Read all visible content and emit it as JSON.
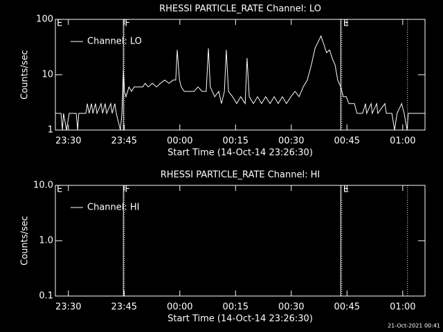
{
  "chart_data": [
    {
      "type": "line",
      "title": "RHESSI PARTICLE_RATE Channel: LO",
      "xlabel": "Start Time (14-Oct-14 23:26:30)",
      "ylabel": "Counts/sec",
      "x": [
        0,
        1.5,
        1.9,
        2.2,
        3.0,
        3.7,
        5.6,
        6.0,
        6.3,
        8.2,
        8.6,
        9.1,
        9.7,
        10.1,
        10.8,
        11.2,
        12.3,
        12.7,
        13.4,
        13.8,
        14.9,
        15.3,
        16.0,
        16.4,
        17.5,
        17.9,
        18.3,
        18.6,
        19.0,
        19.8,
        20.5,
        21.2,
        22.4,
        23.5,
        24.2,
        25.0,
        26.1,
        27.2,
        28.3,
        29.4,
        30.6,
        31.7,
        32.4,
        32.8,
        33.4,
        33.9,
        34.7,
        35.8,
        37.3,
        38.4,
        39.5,
        40.6,
        41.2,
        41.7,
        42.9,
        44.0,
        44.7,
        45.5,
        46.0,
        46.6,
        47.7,
        48.8,
        49.9,
        51.1,
        51.6,
        52.2,
        53.3,
        54.4,
        55.5,
        56.6,
        57.8,
        58.9,
        60.0,
        61.1,
        62.2,
        63.4,
        64.5,
        65.6,
        66.7,
        67.8,
        68.9,
        69.9,
        70.8,
        71.5,
        72.3,
        73.0,
        73.8,
        74.5,
        75.3,
        76.0,
        76.8,
        77.5,
        78.3,
        79.0,
        80.5,
        81.2,
        82.7,
        83.5,
        83.8,
        85.0,
        85.3,
        86.5,
        86.8,
        88.7,
        89.1,
        90.6,
        91.3,
        92.0,
        93.2,
        93.9,
        94.7,
        95.0,
        99.5
      ],
      "series": [
        {
          "name": "Channel: LO",
          "color": "#ffffff",
          "values": [
            2,
            2,
            1,
            2,
            1,
            2,
            2,
            1,
            2,
            2,
            3,
            2,
            3,
            2,
            3,
            2,
            3,
            2,
            3,
            2,
            3,
            2,
            3,
            2,
            1,
            2,
            12,
            5,
            4,
            6,
            5,
            6,
            6,
            6,
            7,
            6,
            7,
            6,
            7,
            8,
            7,
            8,
            8,
            28,
            8,
            6,
            5,
            5,
            5,
            6,
            5,
            5,
            30,
            6,
            4,
            5,
            3,
            5,
            28,
            5,
            4,
            3,
            4,
            3,
            20,
            4,
            3,
            4,
            3,
            4,
            3,
            4,
            3,
            4,
            3,
            4,
            5,
            4,
            6,
            8,
            15,
            30,
            40,
            50,
            35,
            25,
            28,
            20,
            15,
            8,
            6,
            4,
            4,
            3,
            3,
            2,
            2,
            3,
            2,
            3,
            2,
            3,
            2,
            3,
            2,
            2,
            1,
            2,
            3,
            2,
            1,
            2,
            2
          ]
        }
      ],
      "xlim": [
        0,
        99.5
      ],
      "xticks": [
        {
          "value": 3.5,
          "label": "23:30"
        },
        {
          "value": 18.5,
          "label": "23:45"
        },
        {
          "value": 33.5,
          "label": "00:00"
        },
        {
          "value": 48.5,
          "label": "00:15"
        },
        {
          "value": 63.5,
          "label": "00:30"
        },
        {
          "value": 78.5,
          "label": "00:45"
        },
        {
          "value": 93.5,
          "label": "01:00"
        }
      ],
      "ylim": [
        1,
        100
      ],
      "yticks": [
        1,
        10,
        100
      ],
      "log_y": true,
      "annotations": [
        {
          "x": 0,
          "text": "E"
        },
        {
          "x": 18.3,
          "text": "F"
        },
        {
          "x": 77.1,
          "text": "E"
        }
      ],
      "vlines": [
        {
          "x": 18.3,
          "style": "solid"
        },
        {
          "x": 18.6,
          "style": "dotted"
        },
        {
          "x": 76.8,
          "style": "solid"
        },
        {
          "x": 77.1,
          "style": "dotted"
        },
        {
          "x": 94.8,
          "style": "dotted"
        }
      ]
    },
    {
      "type": "line",
      "title": "RHESSI PARTICLE_RATE Channel: HI",
      "xlabel": "Start Time (14-Oct-14 23:26:30)",
      "ylabel": "Counts/sec",
      "x": [],
      "series": [
        {
          "name": "Channel: HI",
          "color": "#ffffff",
          "values": []
        }
      ],
      "xlim": [
        0,
        99.5
      ],
      "xticks": [
        {
          "value": 3.5,
          "label": "23:30"
        },
        {
          "value": 18.5,
          "label": "23:45"
        },
        {
          "value": 33.5,
          "label": "00:00"
        },
        {
          "value": 48.5,
          "label": "00:15"
        },
        {
          "value": 63.5,
          "label": "00:30"
        },
        {
          "value": 78.5,
          "label": "00:45"
        },
        {
          "value": 93.5,
          "label": "01:00"
        }
      ],
      "ylim": [
        0.1,
        10
      ],
      "yticks": [
        0.1,
        {
          "value": 1,
          "label": "1.0"
        },
        {
          "value": 10,
          "label": "10.0"
        }
      ],
      "log_y": true,
      "annotations": [
        {
          "x": 0,
          "text": "E"
        },
        {
          "x": 18.3,
          "text": "F"
        },
        {
          "x": 77.1,
          "text": "E"
        }
      ],
      "vlines": [
        {
          "x": 18.3,
          "style": "solid"
        },
        {
          "x": 18.6,
          "style": "dotted"
        },
        {
          "x": 76.8,
          "style": "solid"
        },
        {
          "x": 77.1,
          "style": "dotted"
        },
        {
          "x": 94.8,
          "style": "dotted"
        }
      ]
    }
  ],
  "footer": "21-Oct-2021 00:41"
}
